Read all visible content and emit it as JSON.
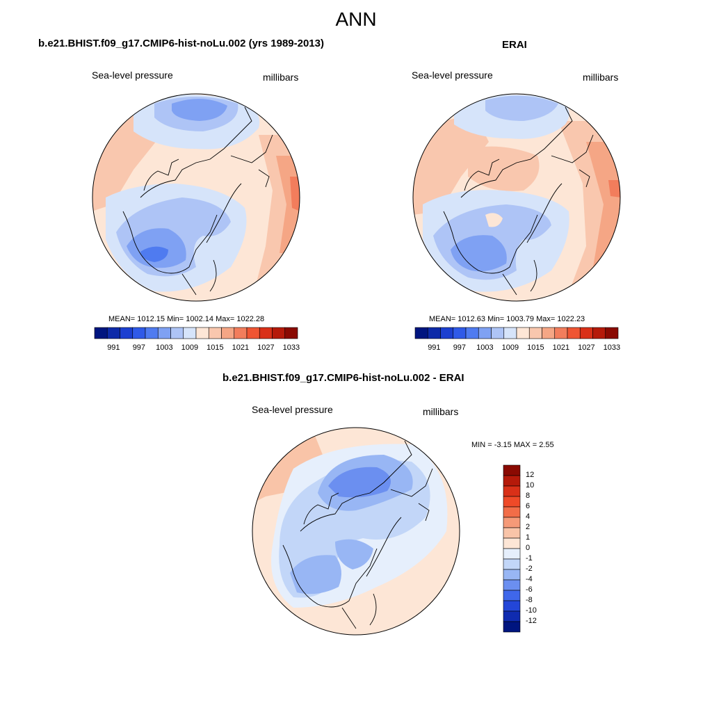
{
  "figure": {
    "title": "ANN",
    "panels": [
      {
        "title": "b.e21.BHIST.f09_g17.CMIP6-hist-noLu.002 (yrs 1989-2013)",
        "left_label": "Sea-level pressure",
        "right_label": "millibars",
        "stats": "MEAN= 1012.15  Min= 1002.14  Max= 1022.28"
      },
      {
        "title": "ERAI",
        "left_label": "Sea-level pressure",
        "right_label": "millibars",
        "stats": "MEAN= 1012.63  Min= 1003.79  Max= 1022.23"
      },
      {
        "title": "b.e21.BHIST.f09_g17.CMIP6-hist-noLu.002 - ERAI",
        "left_label": "Sea-level pressure",
        "right_label": "millibars",
        "stats": "MIN =  -3.15 MAX =   2.55"
      }
    ]
  },
  "colorbars": {
    "absolute": {
      "tick_labels": [
        "991",
        "997",
        "1003",
        "1009",
        "1015",
        "1021",
        "1027",
        "1033"
      ],
      "colors": [
        "#00157f",
        "#0d2aa8",
        "#1c3fd0",
        "#2f5ae8",
        "#4f7bf0",
        "#7fa1f3",
        "#aec4f6",
        "#d6e4fa",
        "#fde6d6",
        "#f9c7ae",
        "#f5a685",
        "#f27d5c",
        "#ef5533",
        "#d93018",
        "#b51a0a",
        "#8a0a02"
      ]
    },
    "difference": {
      "tick_labels": [
        "12",
        "10",
        "8",
        "6",
        "4",
        "2",
        "1",
        "0",
        "-1",
        "-2",
        "-4",
        "-6",
        "-8",
        "-10",
        "-12"
      ],
      "colors": [
        "#8a0a02",
        "#b51a0a",
        "#d93018",
        "#ef4a28",
        "#f26d48",
        "#f59a78",
        "#f9c4a8",
        "#fde6d6",
        "#e6effc",
        "#c2d6f8",
        "#98b6f4",
        "#6b8ff0",
        "#3f67ea",
        "#2346d8",
        "#0f2bb0",
        "#00157f"
      ]
    }
  },
  "palette": {
    "light_pink": "#fde6d6",
    "pink": "#f9c7ae",
    "salmon": "#f5a685",
    "orange": "#f27d5c",
    "light_blue": "#d6e4fa",
    "blue1": "#aec4f6",
    "blue2": "#7fa1f3",
    "blue3": "#4f7bf0"
  }
}
